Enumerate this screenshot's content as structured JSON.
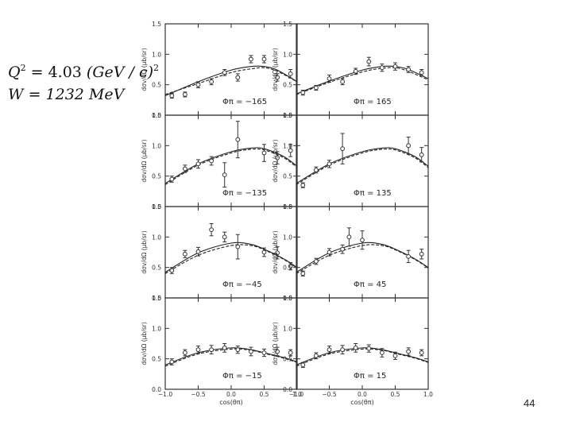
{
  "kinematics": {
    "q_line": {
      "q": "Q",
      "exp": "2",
      "eq": " = 4.03 ",
      "unit": "(GeV / c)",
      "unit_exp": "2"
    },
    "w_line": {
      "text": "W = 1232  MeV"
    }
  },
  "page_number": "44",
  "chart_data": {
    "type": "scatter",
    "title": "",
    "xlabel": "cos(θπ)",
    "ylabel": "dσv/dΩ (μb/sr)",
    "xlim": [
      -1.0,
      1.0
    ],
    "ylim": [
      0.0,
      1.5
    ],
    "x_ticks": [
      -1.0,
      -0.5,
      0.0,
      0.5,
      1.0
    ],
    "x_tick_labels": [
      "−1.0",
      "−0.5",
      "0.0",
      "0.5",
      "1.0"
    ],
    "y_ticks": [
      0.0,
      0.5,
      1.0,
      1.5
    ],
    "y_tick_labels": [
      "0.0",
      "0.5",
      "1.0",
      "1.5"
    ],
    "line_styles": [
      "solid",
      "dashed"
    ],
    "panels": [
      {
        "phi_label": "Φπ = −165",
        "points": [
          [
            -0.9,
            0.32,
            0.04
          ],
          [
            -0.7,
            0.34,
            0.04
          ],
          [
            -0.5,
            0.5,
            0.05
          ],
          [
            -0.3,
            0.55,
            0.05
          ],
          [
            -0.1,
            0.7,
            0.05
          ],
          [
            0.1,
            0.62,
            0.06
          ],
          [
            0.3,
            0.92,
            0.06
          ],
          [
            0.5,
            0.92,
            0.06
          ],
          [
            0.7,
            0.62,
            0.06
          ],
          [
            0.9,
            0.68,
            0.07
          ]
        ],
        "curves": [
          [
            [
              -1,
              0.32
            ],
            [
              -0.5,
              0.55
            ],
            [
              0,
              0.74
            ],
            [
              0.3,
              0.8
            ],
            [
              0.5,
              0.8
            ],
            [
              0.7,
              0.74
            ],
            [
              1,
              0.55
            ]
          ],
          [
            [
              -1,
              0.34
            ],
            [
              -0.5,
              0.52
            ],
            [
              0,
              0.7
            ],
            [
              0.3,
              0.76
            ],
            [
              0.5,
              0.78
            ],
            [
              0.7,
              0.72
            ],
            [
              1,
              0.55
            ]
          ]
        ]
      },
      {
        "phi_label": "Φπ = 165",
        "points": [
          [
            -0.9,
            0.37,
            0.04
          ],
          [
            -0.7,
            0.45,
            0.04
          ],
          [
            -0.5,
            0.6,
            0.06
          ],
          [
            -0.3,
            0.55,
            0.05
          ],
          [
            -0.1,
            0.72,
            0.05
          ],
          [
            0.1,
            0.88,
            0.07
          ],
          [
            0.3,
            0.78,
            0.06
          ],
          [
            0.5,
            0.8,
            0.06
          ],
          [
            0.7,
            0.75,
            0.05
          ],
          [
            0.9,
            0.7,
            0.05
          ]
        ],
        "curves": [
          [
            [
              -1,
              0.35
            ],
            [
              -0.5,
              0.56
            ],
            [
              0,
              0.74
            ],
            [
              0.3,
              0.8
            ],
            [
              0.5,
              0.8
            ],
            [
              0.7,
              0.75
            ],
            [
              1,
              0.6
            ]
          ],
          [
            [
              -1,
              0.34
            ],
            [
              -0.5,
              0.54
            ],
            [
              0,
              0.71
            ],
            [
              0.3,
              0.77
            ],
            [
              0.5,
              0.78
            ],
            [
              0.7,
              0.72
            ],
            [
              1,
              0.58
            ]
          ]
        ]
      },
      {
        "phi_label": "Φπ = −135",
        "points": [
          [
            -0.9,
            0.45,
            0.05
          ],
          [
            -0.7,
            0.62,
            0.06
          ],
          [
            -0.5,
            0.7,
            0.07
          ],
          [
            -0.3,
            0.75,
            0.07
          ],
          [
            -0.1,
            0.52,
            0.2
          ],
          [
            0.1,
            1.1,
            0.3
          ],
          [
            0.5,
            0.88,
            0.14
          ],
          [
            0.7,
            0.8,
            0.1
          ],
          [
            0.9,
            0.92,
            0.1
          ]
        ],
        "curves": [
          [
            [
              -1,
              0.38
            ],
            [
              -0.5,
              0.7
            ],
            [
              0,
              0.9
            ],
            [
              0.3,
              0.96
            ],
            [
              0.5,
              0.95
            ],
            [
              0.8,
              0.82
            ],
            [
              1,
              0.66
            ]
          ],
          [
            [
              -1,
              0.36
            ],
            [
              -0.5,
              0.68
            ],
            [
              0,
              0.88
            ],
            [
              0.3,
              0.94
            ],
            [
              0.5,
              0.93
            ],
            [
              0.8,
              0.8
            ],
            [
              1,
              0.64
            ]
          ]
        ]
      },
      {
        "phi_label": "Φπ = 135",
        "points": [
          [
            -0.9,
            0.35,
            0.04
          ],
          [
            -0.7,
            0.6,
            0.05
          ],
          [
            -0.5,
            0.7,
            0.06
          ],
          [
            -0.3,
            0.95,
            0.25
          ],
          [
            0.7,
            1.0,
            0.14
          ],
          [
            0.9,
            0.85,
            0.12
          ]
        ],
        "curves": [
          [
            [
              -1,
              0.38
            ],
            [
              -0.5,
              0.7
            ],
            [
              0,
              0.9
            ],
            [
              0.3,
              0.96
            ],
            [
              0.5,
              0.95
            ],
            [
              0.8,
              0.82
            ],
            [
              1,
              0.66
            ]
          ],
          [
            [
              -1,
              0.36
            ],
            [
              -0.5,
              0.68
            ],
            [
              0,
              0.88
            ],
            [
              0.3,
              0.94
            ],
            [
              0.5,
              0.93
            ],
            [
              0.8,
              0.8
            ],
            [
              1,
              0.64
            ]
          ]
        ]
      },
      {
        "phi_label": "Φπ = −45",
        "points": [
          [
            -0.9,
            0.45,
            0.05
          ],
          [
            -0.7,
            0.72,
            0.06
          ],
          [
            -0.5,
            0.76,
            0.07
          ],
          [
            -0.3,
            1.12,
            0.1
          ],
          [
            -0.1,
            1.0,
            0.08
          ],
          [
            0.1,
            0.84,
            0.2
          ],
          [
            0.5,
            0.75,
            0.07
          ],
          [
            0.7,
            0.74,
            0.1
          ],
          [
            0.9,
            0.52,
            0.06
          ]
        ],
        "curves": [
          [
            [
              -1,
              0.42
            ],
            [
              -0.5,
              0.74
            ],
            [
              0,
              0.9
            ],
            [
              0.3,
              0.88
            ],
            [
              0.5,
              0.8
            ],
            [
              0.8,
              0.64
            ],
            [
              1,
              0.5
            ]
          ],
          [
            [
              -1,
              0.4
            ],
            [
              -0.5,
              0.7
            ],
            [
              0,
              0.86
            ],
            [
              0.3,
              0.86
            ],
            [
              0.5,
              0.79
            ],
            [
              0.8,
              0.63
            ],
            [
              1,
              0.49
            ]
          ]
        ]
      },
      {
        "phi_label": "Φπ = 45",
        "points": [
          [
            -0.9,
            0.4,
            0.04
          ],
          [
            -0.7,
            0.6,
            0.05
          ],
          [
            -0.5,
            0.75,
            0.06
          ],
          [
            -0.3,
            0.8,
            0.07
          ],
          [
            -0.2,
            1.0,
            0.15
          ],
          [
            0.0,
            0.95,
            0.15
          ],
          [
            0.7,
            0.68,
            0.1
          ],
          [
            0.9,
            0.72,
            0.08
          ]
        ],
        "curves": [
          [
            [
              -1,
              0.42
            ],
            [
              -0.5,
              0.74
            ],
            [
              0,
              0.9
            ],
            [
              0.3,
              0.88
            ],
            [
              0.5,
              0.8
            ],
            [
              0.8,
              0.64
            ],
            [
              1,
              0.5
            ]
          ],
          [
            [
              -1,
              0.4
            ],
            [
              -0.5,
              0.7
            ],
            [
              0,
              0.86
            ],
            [
              0.3,
              0.86
            ],
            [
              0.5,
              0.79
            ],
            [
              0.8,
              0.63
            ],
            [
              1,
              0.49
            ]
          ]
        ]
      },
      {
        "phi_label": "Φπ = −15",
        "points": [
          [
            -0.9,
            0.45,
            0.05
          ],
          [
            -0.7,
            0.6,
            0.05
          ],
          [
            -0.5,
            0.65,
            0.06
          ],
          [
            -0.3,
            0.65,
            0.07
          ],
          [
            -0.1,
            0.68,
            0.07
          ],
          [
            0.1,
            0.65,
            0.06
          ],
          [
            0.3,
            0.62,
            0.07
          ],
          [
            0.5,
            0.6,
            0.06
          ],
          [
            0.7,
            0.62,
            0.07
          ],
          [
            0.9,
            0.6,
            0.05
          ]
        ],
        "curves": [
          [
            [
              -1,
              0.4
            ],
            [
              -0.5,
              0.6
            ],
            [
              0,
              0.68
            ],
            [
              0.3,
              0.65
            ],
            [
              0.5,
              0.6
            ],
            [
              0.8,
              0.52
            ],
            [
              1,
              0.45
            ]
          ],
          [
            [
              -1,
              0.38
            ],
            [
              -0.5,
              0.58
            ],
            [
              0,
              0.66
            ],
            [
              0.3,
              0.64
            ],
            [
              0.5,
              0.59
            ],
            [
              0.8,
              0.51
            ],
            [
              1,
              0.44
            ]
          ]
        ]
      },
      {
        "phi_label": "Φπ = 15",
        "points": [
          [
            -0.9,
            0.4,
            0.04
          ],
          [
            -0.7,
            0.55,
            0.05
          ],
          [
            -0.5,
            0.65,
            0.06
          ],
          [
            -0.3,
            0.65,
            0.07
          ],
          [
            -0.1,
            0.68,
            0.07
          ],
          [
            0.1,
            0.67,
            0.06
          ],
          [
            0.3,
            0.6,
            0.07
          ],
          [
            0.5,
            0.55,
            0.06
          ],
          [
            0.7,
            0.62,
            0.06
          ],
          [
            0.9,
            0.6,
            0.05
          ]
        ],
        "curves": [
          [
            [
              -1,
              0.4
            ],
            [
              -0.5,
              0.6
            ],
            [
              0,
              0.68
            ],
            [
              0.3,
              0.65
            ],
            [
              0.5,
              0.6
            ],
            [
              0.8,
              0.52
            ],
            [
              1,
              0.45
            ]
          ],
          [
            [
              -1,
              0.38
            ],
            [
              -0.5,
              0.58
            ],
            [
              0,
              0.66
            ],
            [
              0.3,
              0.64
            ],
            [
              0.5,
              0.59
            ],
            [
              0.8,
              0.51
            ],
            [
              1,
              0.44
            ]
          ]
        ]
      }
    ]
  }
}
